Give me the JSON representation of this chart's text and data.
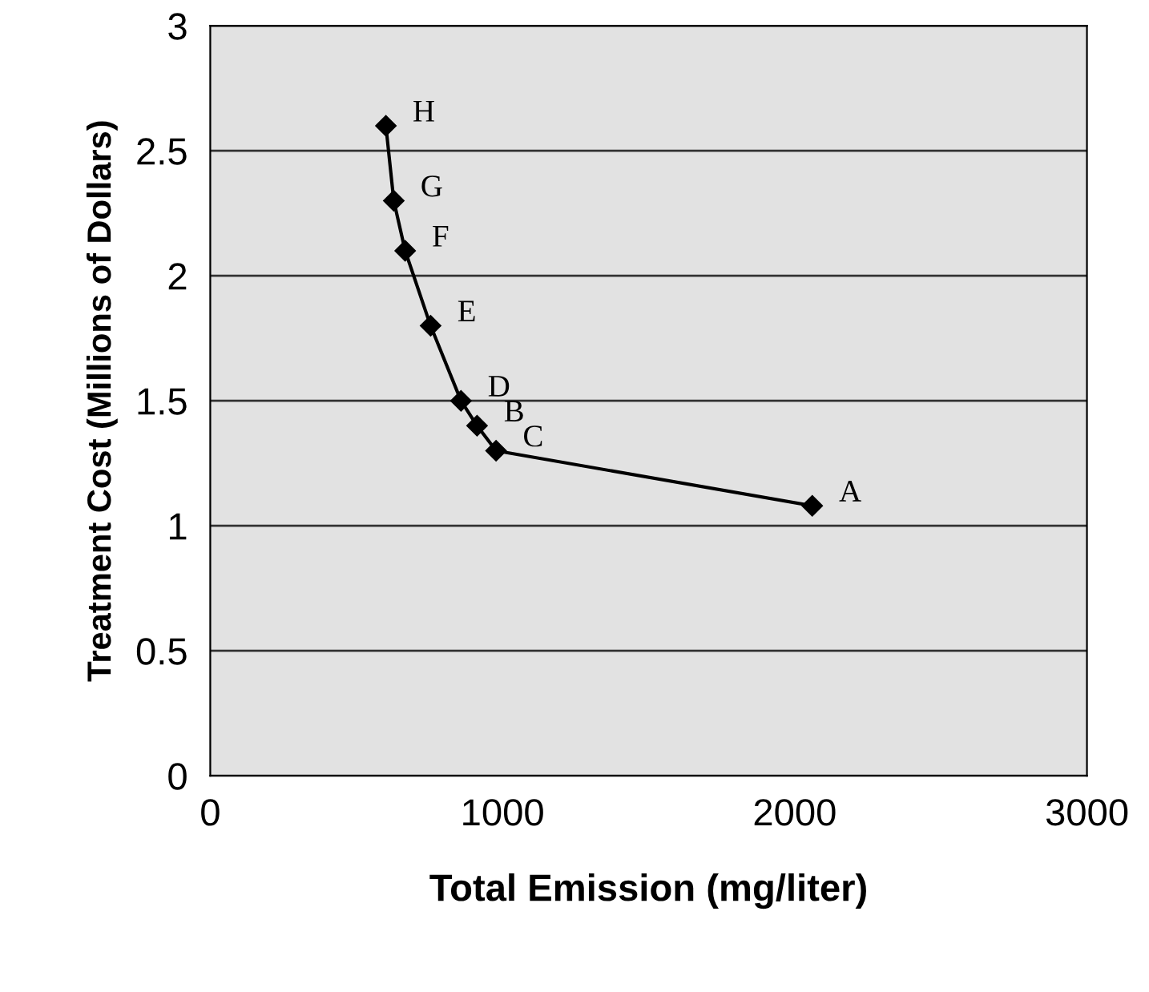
{
  "chart_data": {
    "type": "line",
    "xlabel": "Total Emission (mg/liter)",
    "ylabel": "Treatment Cost (Millions of Dollars)",
    "x": [
      2060,
      978,
      913,
      858,
      754,
      667,
      628,
      601
    ],
    "series": [
      {
        "color": "#000000",
        "values": [
          1.08,
          1.3,
          1.4,
          1.5,
          1.8,
          2.1,
          2.3,
          2.6
        ]
      }
    ],
    "marker": "diamond",
    "line_style": "solid",
    "xlim": [
      0,
      3000
    ],
    "xticks": [
      0,
      1000,
      2000,
      3000
    ],
    "ylim": [
      0,
      3
    ],
    "yticks": [
      0,
      0.5,
      1,
      1.5,
      2,
      2.5,
      3
    ],
    "grid": "y",
    "annotations": [
      {
        "text": "A",
        "x": 2060,
        "y": 1.08
      },
      {
        "text": "B",
        "x": 913,
        "y": 1.4
      },
      {
        "text": "C",
        "x": 978,
        "y": 1.3
      },
      {
        "text": "D",
        "x": 858,
        "y": 1.5
      },
      {
        "text": "E",
        "x": 754,
        "y": 1.8
      },
      {
        "text": "F",
        "x": 667,
        "y": 2.1
      },
      {
        "text": "G",
        "x": 628,
        "y": 2.3
      },
      {
        "text": "H",
        "x": 601,
        "y": 2.6
      }
    ]
  }
}
